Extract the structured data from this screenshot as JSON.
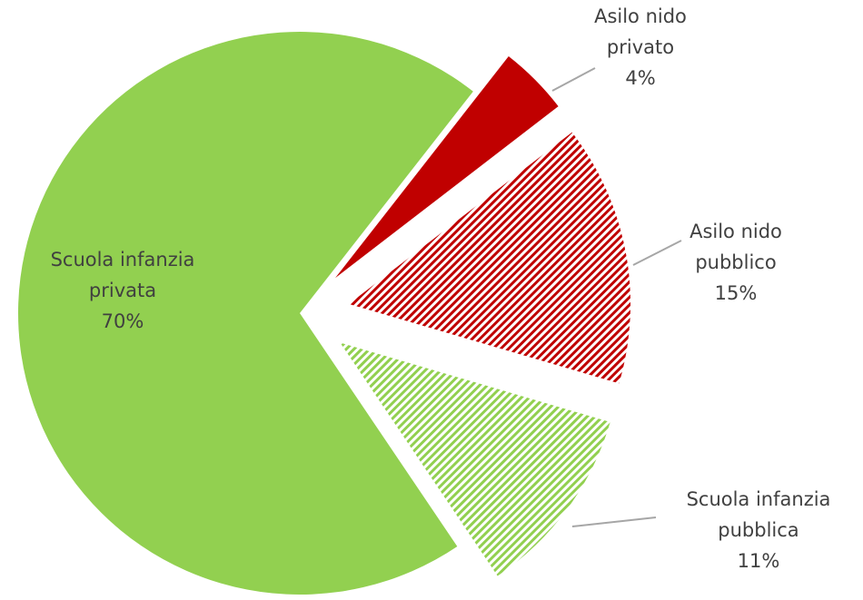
{
  "chart_data": {
    "type": "pie",
    "categories": [
      "Asilo nido privato",
      "Asilo nido pubblico",
      "Scuola infanzia pubblica",
      "Scuola infanzia privata"
    ],
    "values": [
      4,
      15,
      11,
      70
    ],
    "value_labels": [
      "4%",
      "15%",
      "11%",
      "70%"
    ],
    "colors": [
      "#c00000",
      "#c00000",
      "#92d050",
      "#92d050"
    ],
    "hatched": [
      false,
      true,
      true,
      false
    ],
    "exploded": [
      true,
      true,
      true,
      false
    ]
  }
}
